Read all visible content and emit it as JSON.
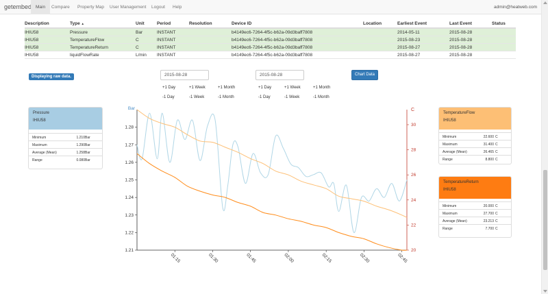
{
  "nav": {
    "brand": "getembed",
    "items": [
      "Main",
      "Compare",
      "Property Map",
      "User Management",
      "Logout",
      "Help"
    ],
    "user": "admin@heatweb.com"
  },
  "table": {
    "headers": {
      "description": "Description",
      "type": "Type",
      "sort_indicator": "▲",
      "unit": "Unit",
      "period": "Period",
      "resolution": "Resolution",
      "device_id": "Device ID",
      "location": "Location",
      "earliest": "Earliest Event",
      "last": "Last Event",
      "status": "Status"
    },
    "rows": [
      {
        "description": "IHIU58",
        "type": "Pressure",
        "unit": "Bar",
        "period": "INSTANT",
        "device_id": "b4149ec6-7264-4f5c-b62a-09d3baff7808",
        "earliest": "2014-05-11",
        "last": "2015-08-28"
      },
      {
        "description": "IHIU58",
        "type": "TemperatureFlow",
        "unit": "C",
        "period": "INSTANT",
        "device_id": "b4149ec6-7264-4f5c-b62a-09d3baff7808",
        "earliest": "2015-08-23",
        "last": "2015-08-28"
      },
      {
        "description": "IHIU58",
        "type": "TemperatureReturn",
        "unit": "C",
        "period": "INSTANT",
        "device_id": "b4149ec6-7264-4f5c-b62a-09d3baff7808",
        "earliest": "2015-08-27",
        "last": "2015-08-28"
      },
      {
        "description": "IHIU58",
        "type": "liquidFlowRate",
        "unit": "L/min",
        "period": "INSTANT",
        "device_id": "b4149ec6-7264-4f5c-b62a-09d3baff7808",
        "earliest": "2015-08-27",
        "last": "2015-08-28"
      }
    ]
  },
  "controls": {
    "raw_label": "Displaying raw data.",
    "start_date": "2015-08-28",
    "end_date": "2015-08-28",
    "chart_button": "Chart Data",
    "plus_day": "+1 Day",
    "plus_week": "+1 Week",
    "plus_month": "+1 Month",
    "minus_day": "-1 Day",
    "minus_week": "-1 Week",
    "minus_month": "-1 Month"
  },
  "stat_labels": {
    "minimum": "Minimum",
    "maximum": "Maximum",
    "average": "Average (Mean)",
    "range": "Range"
  },
  "panels": {
    "pressure": {
      "title": "Pressure",
      "device": "IHIU58",
      "min": "1.210",
      "max": "1.290",
      "avg": "1.258",
      "range": "0.080",
      "unit": "Bar",
      "color": "#a8cde3"
    },
    "flow": {
      "title": "TemperatureFlow",
      "device": "IHIU58",
      "min": "22.600",
      "max": "31.400",
      "avg": "26.465",
      "range": "8.800",
      "unit": "C",
      "color": "#fdbf75"
    },
    "ret": {
      "title": "TemperatureReturn",
      "device": "IHIU58",
      "min": "20.000",
      "max": "27.700",
      "avg": "23.213",
      "range": "7.700",
      "unit": "C",
      "color": "#fe7c12"
    }
  },
  "chart_data": {
    "type": "line",
    "left_axis": {
      "label": "Bar",
      "ticks": [
        "1.21",
        "1.22",
        "1.23",
        "1.24",
        "1.25",
        "1.26",
        "1.27",
        "1.28"
      ],
      "range": [
        1.21,
        1.29
      ],
      "color": "#4a8ec7"
    },
    "right_axis": {
      "label": "C",
      "ticks": [
        "20",
        "22",
        "24",
        "26",
        "28",
        "30"
      ],
      "range": [
        20,
        31.2
      ],
      "color": "#c0392b"
    },
    "x_ticks": [
      "01:15",
      "01:30",
      "01:45",
      "02:00",
      "02:15",
      "02:30",
      "02:45"
    ],
    "x_tick_minutes": [
      75,
      90,
      105,
      120,
      135,
      150,
      165
    ],
    "x_range": [
      60,
      167
    ],
    "series": [
      {
        "name": "Pressure",
        "axis": "left",
        "color": "#b0d6e6",
        "x": [
          60,
          62,
          65,
          68,
          70,
          73,
          76,
          79,
          82,
          85,
          88,
          91,
          94,
          96,
          98,
          100,
          103,
          106,
          109,
          112,
          115,
          118,
          121,
          124,
          127,
          130,
          133,
          136,
          138,
          140,
          143,
          146,
          149,
          152,
          155,
          158,
          161,
          164,
          167
        ],
        "y": [
          1.27,
          1.262,
          1.288,
          1.262,
          1.288,
          1.26,
          1.284,
          1.273,
          1.284,
          1.261,
          1.281,
          1.284,
          1.234,
          1.247,
          1.27,
          1.269,
          1.248,
          1.265,
          1.254,
          1.253,
          1.275,
          1.268,
          1.259,
          1.257,
          1.252,
          1.253,
          1.254,
          1.246,
          1.248,
          1.232,
          1.247,
          1.22,
          1.24,
          1.238,
          1.245,
          1.24,
          1.248,
          1.238,
          1.25
        ]
      },
      {
        "name": "TemperatureFlow",
        "axis": "right",
        "color": "#fdbf75",
        "x": [
          60,
          65,
          70,
          75,
          80,
          85,
          90,
          95,
          100,
          105,
          110,
          115,
          120,
          125,
          130,
          135,
          140,
          145,
          150,
          155,
          160,
          165,
          167
        ],
        "y": [
          31.2,
          30.5,
          30.1,
          29.8,
          29.2,
          28.7,
          28.6,
          28.2,
          27.8,
          27.3,
          26.9,
          26.3,
          26.0,
          25.5,
          25.2,
          24.9,
          24.3,
          24.1,
          23.9,
          23.5,
          23.2,
          22.8,
          22.6
        ]
      },
      {
        "name": "TemperatureReturn",
        "axis": "right",
        "color": "#ff8c1a",
        "x": [
          60,
          65,
          70,
          75,
          80,
          85,
          90,
          95,
          100,
          105,
          110,
          115,
          120,
          125,
          130,
          135,
          140,
          145,
          150,
          155,
          160,
          165,
          167
        ],
        "y": [
          27.7,
          26.9,
          26.3,
          25.8,
          25.1,
          24.7,
          24.4,
          24.2,
          23.8,
          23.5,
          23.0,
          22.8,
          22.5,
          22.3,
          22.0,
          21.8,
          21.4,
          21.1,
          20.9,
          20.5,
          20.2,
          20.0,
          20.0
        ]
      }
    ]
  }
}
